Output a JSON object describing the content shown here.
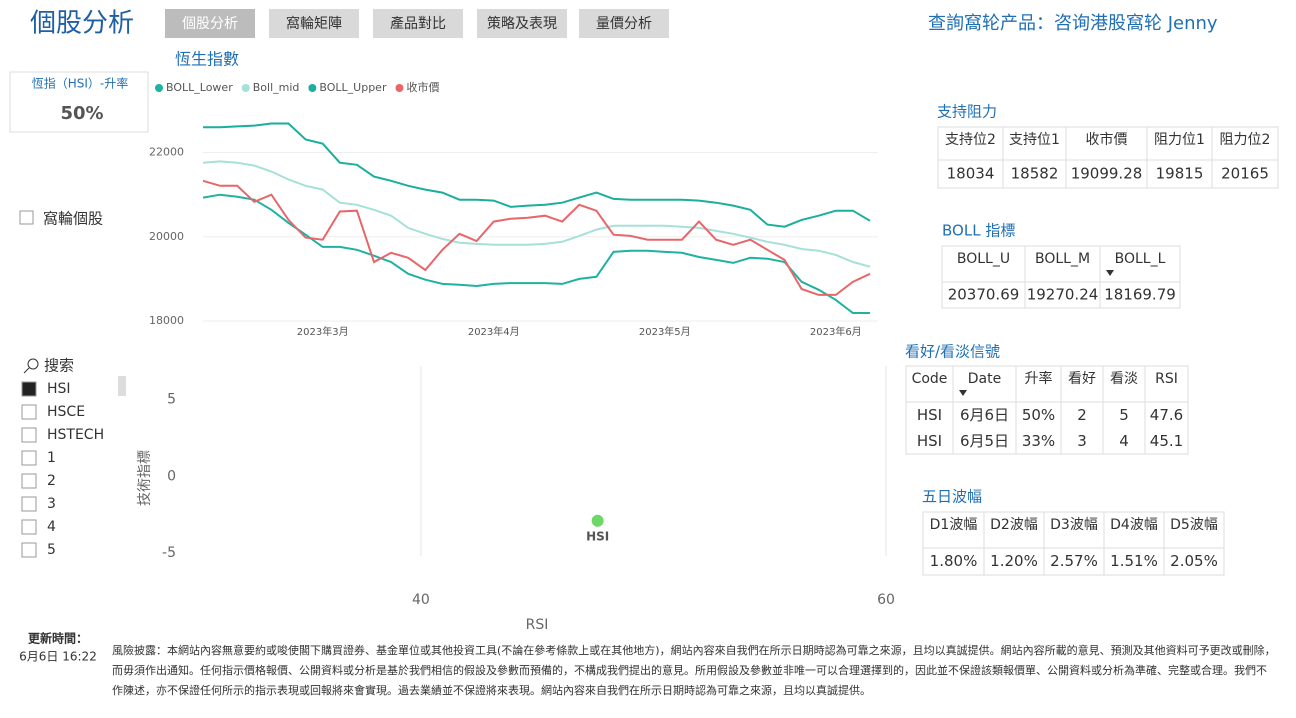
{
  "header": {
    "title": "個股分析",
    "tabs": [
      "個股分析",
      "窩輪矩陣",
      "產品對比",
      "策略及表現",
      "量價分析"
    ],
    "query": "查詢窩轮产品：咨询港股窩轮 Jenny"
  },
  "kpi": {
    "label": "恆指（HSI）-升率",
    "value": "50%"
  },
  "checkbox": "窩輪個股",
  "slicer": {
    "search": "搜索",
    "items": [
      "HSI",
      "HSCE",
      "HSTECH",
      "1",
      "2",
      "3",
      "4",
      "5"
    ]
  },
  "chart_data": [
    {
      "type": "line",
      "title": "恆生指數",
      "categories": [
        null,
        null,
        null,
        null,
        null,
        null,
        null,
        "2023年3月",
        null,
        null,
        null,
        null,
        null,
        null,
        null,
        null,
        null,
        "2023年4月",
        null,
        null,
        null,
        null,
        null,
        null,
        null,
        null,
        null,
        "2023年5月",
        null,
        null,
        null,
        null,
        null,
        null,
        null,
        null,
        null,
        "2023年6月",
        null,
        null
      ],
      "ylim": [
        18000,
        22500
      ],
      "yticks": [
        18000,
        20000,
        22000
      ],
      "grid": true,
      "series": [
        {
          "name": "BOLL_Lower",
          "color": "#1fb2a0",
          "values": [
            20930,
            21000,
            20950,
            20880,
            20640,
            20330,
            20050,
            19760,
            19760,
            19690,
            19550,
            19400,
            19120,
            18980,
            18880,
            18860,
            18830,
            18880,
            18900,
            18900,
            18900,
            18880,
            19000,
            19050,
            19640,
            19670,
            19670,
            19640,
            19620,
            19520,
            19450,
            19380,
            19500,
            19480,
            19400,
            18930,
            18740,
            18500,
            18190,
            18190
          ]
        },
        {
          "name": "Boll_mid",
          "color": "#a5e0d9",
          "values": [
            21760,
            21790,
            21760,
            21690,
            21550,
            21360,
            21210,
            21120,
            20810,
            20760,
            20640,
            20500,
            20210,
            20070,
            19950,
            19860,
            19830,
            19810,
            19810,
            19810,
            19830,
            19880,
            20020,
            20170,
            20260,
            20260,
            20260,
            20260,
            20240,
            20210,
            20140,
            20070,
            19980,
            19880,
            19810,
            19710,
            19670,
            19570,
            19400,
            19290
          ]
        },
        {
          "name": "BOLL_Upper",
          "color": "#1aae9c",
          "values": [
            22600,
            22600,
            22620,
            22640,
            22690,
            22690,
            22310,
            22210,
            21760,
            21710,
            21430,
            21330,
            21210,
            21120,
            21050,
            20880,
            20880,
            20860,
            20710,
            20740,
            20760,
            20810,
            20930,
            21050,
            20900,
            20880,
            20880,
            20880,
            20880,
            20860,
            20810,
            20740,
            20640,
            20290,
            20240,
            20400,
            20500,
            20620,
            20620,
            20380
          ]
        },
        {
          "name": "收市價",
          "color": "#e8666a",
          "values": [
            21330,
            21210,
            21210,
            20830,
            21000,
            20400,
            19980,
            19930,
            20600,
            20620,
            19400,
            19620,
            19500,
            19210,
            19690,
            20070,
            19900,
            20360,
            20430,
            20450,
            20500,
            20360,
            20760,
            20620,
            20050,
            20020,
            19930,
            19930,
            19930,
            20360,
            19930,
            19810,
            19930,
            19690,
            19450,
            18760,
            18620,
            18620,
            18930,
            19120
          ]
        }
      ]
    },
    {
      "type": "scatter",
      "x_label": "RSI",
      "y_label": "技術指標",
      "xlim": [
        28.35,
        60
      ],
      "xticks": [
        40,
        60
      ],
      "ylim": [
        -5.2,
        7.2
      ],
      "yticks": [
        5,
        0,
        -5
      ],
      "grid": "x",
      "series": [
        {
          "name": "HSI",
          "color": "#6bd867",
          "x": [
            47.6
          ],
          "values": [
            -2.9
          ]
        }
      ]
    }
  ],
  "support_resistance": {
    "title": "支持阻力",
    "columns": [
      "支持位2",
      "支持位1",
      "收市價",
      "阻力位1",
      "阻力位2"
    ],
    "rows": [
      [
        "18034",
        "18582",
        "19099.28",
        "19815",
        "20165"
      ]
    ]
  },
  "boll": {
    "title": "BOLL 指標",
    "columns": [
      "BOLL_U",
      "BOLL_M",
      "BOLL_L"
    ],
    "rows": [
      [
        "20370.69",
        "19270.24",
        "18169.79"
      ]
    ]
  },
  "signals": {
    "title": "看好/看淡信號",
    "columns": [
      "Code",
      "Date",
      "升率",
      "看好",
      "看淡",
      "RSI"
    ],
    "rows": [
      [
        "HSI",
        "6月6日",
        "50%",
        "2",
        "5",
        "47.6"
      ],
      [
        "HSI",
        "6月5日",
        "33%",
        "3",
        "4",
        "45.1"
      ]
    ]
  },
  "volatility": {
    "title": "五日波幅",
    "columns": [
      "D1波幅",
      "D2波幅",
      "D3波幅",
      "D4波幅",
      "D5波幅"
    ],
    "rows": [
      [
        "1.80%",
        "1.20%",
        "2.57%",
        "1.51%",
        "2.05%"
      ]
    ]
  },
  "updated": {
    "label": "更新時間：",
    "value": "6月6日 16:22"
  },
  "disclaimer": "風險披露：本網站內容無意要約或唆使閣下購買證券、基金單位或其他投資工具(不論在參考條款上或在其他地方)，網站內容來自我們在所示日期時認為可靠之來源，且均以真誠提供。網站內容所載的意見、預測及其他資料可予更改或刪除，而毋須作出通知。任何指示價格報價、公開資料或分析是基於我們相信的假設及參數而預備的，不構成我們提出的意見。所用假設及參數並非唯一可以合理選擇到的，因此並不保證該類報價單、公開資料或分析為準確、完整或合理。我們不作陳述，亦不保證任何所示的指示表現或回報將來會實現。過去業績並不保證將來表現。網站內容來自我們在所示日期時認為可靠之來源，且均以真誠提供。"
}
